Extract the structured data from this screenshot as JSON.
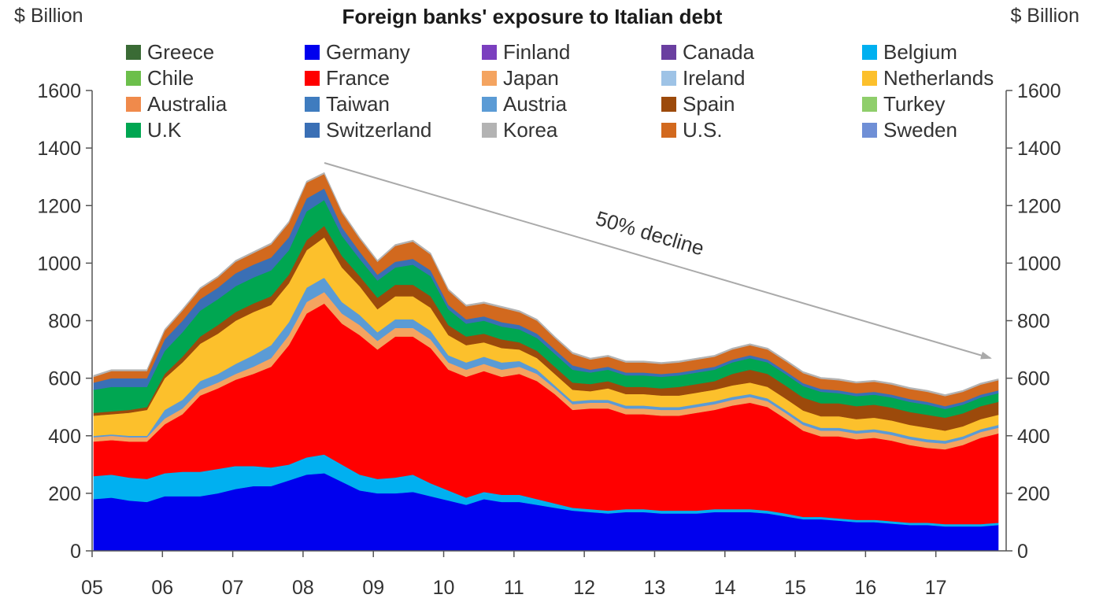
{
  "header": {
    "title": "Foreign banks' exposure to Italian debt",
    "unit_left": "$ Billion",
    "unit_right": "$ Billion"
  },
  "chart_data": {
    "type": "area",
    "stacked": true,
    "title": "Foreign banks' exposure to Italian debt",
    "ylabel_left": "$ Billion",
    "ylabel_right": "$ Billion",
    "ylim": [
      0,
      1600
    ],
    "yticks": [
      "0",
      "200",
      "400",
      "600",
      "800",
      "1000",
      "1200",
      "1400",
      "1600"
    ],
    "x_ticks": [
      "05",
      "06",
      "07",
      "08",
      "09",
      "10",
      "11",
      "12",
      "13",
      "14",
      "15",
      "16",
      "17"
    ],
    "x": [
      "05Q1",
      "05Q2",
      "05Q3",
      "05Q4",
      "06Q1",
      "06Q2",
      "06Q3",
      "06Q4",
      "07Q1",
      "07Q2",
      "07Q3",
      "07Q4",
      "08Q1",
      "08Q2",
      "08Q3",
      "08Q4",
      "09Q1",
      "09Q2",
      "09Q3",
      "09Q4",
      "10Q1",
      "10Q2",
      "10Q3",
      "10Q4",
      "11Q1",
      "11Q2",
      "11Q3",
      "11Q4",
      "12Q1",
      "12Q2",
      "12Q3",
      "12Q4",
      "13Q1",
      "13Q2",
      "13Q3",
      "13Q4",
      "14Q1",
      "14Q2",
      "14Q3",
      "14Q4",
      "15Q1",
      "15Q2",
      "15Q3",
      "15Q4",
      "16Q1",
      "16Q2",
      "16Q3",
      "16Q4",
      "17Q1",
      "17Q2",
      "17Q3",
      "17Q4"
    ],
    "legend_order": [
      "Greece",
      "Germany",
      "Finland",
      "Canada",
      "Belgium",
      "Chile",
      "France",
      "Japan",
      "Ireland",
      "Netherlands",
      "Australia",
      "Taiwan",
      "Austria",
      "Spain",
      "Turkey",
      "U.K",
      "Switzerland",
      "Korea",
      "U.S.",
      "Sweden"
    ],
    "legend_position": "top",
    "series": [
      {
        "name": "Germany",
        "color": "#0000ee",
        "values": [
          180,
          185,
          175,
          170,
          190,
          190,
          190,
          200,
          215,
          225,
          225,
          245,
          265,
          270,
          240,
          210,
          200,
          200,
          205,
          190,
          175,
          160,
          180,
          170,
          170,
          160,
          150,
          140,
          135,
          130,
          135,
          135,
          130,
          130,
          130,
          135,
          135,
          135,
          130,
          120,
          110,
          110,
          105,
          100,
          100,
          95,
          90,
          90,
          85,
          85,
          85,
          90
        ]
      },
      {
        "name": "Belgium",
        "color": "#00b0f0",
        "values": [
          80,
          80,
          80,
          80,
          80,
          85,
          85,
          85,
          80,
          70,
          65,
          55,
          60,
          65,
          60,
          55,
          50,
          55,
          60,
          45,
          35,
          25,
          25,
          25,
          25,
          20,
          15,
          10,
          10,
          10,
          10,
          10,
          10,
          10,
          10,
          10,
          10,
          10,
          10,
          10,
          8,
          8,
          8,
          8,
          8,
          8,
          8,
          8,
          8,
          8,
          8,
          8
        ]
      },
      {
        "name": "France",
        "color": "#ff0000",
        "values": [
          120,
          120,
          125,
          130,
          170,
          200,
          265,
          280,
          300,
          320,
          350,
          415,
          500,
          525,
          490,
          485,
          450,
          490,
          480,
          470,
          420,
          420,
          420,
          410,
          420,
          410,
          380,
          340,
          350,
          355,
          330,
          330,
          330,
          330,
          340,
          345,
          360,
          370,
          360,
          330,
          300,
          280,
          285,
          280,
          285,
          280,
          270,
          260,
          260,
          275,
          300,
          310
        ]
      },
      {
        "name": "Japan",
        "color": "#f4a460",
        "values": [
          15,
          15,
          15,
          15,
          20,
          20,
          20,
          20,
          20,
          25,
          30,
          35,
          40,
          40,
          35,
          35,
          30,
          30,
          30,
          30,
          25,
          25,
          25,
          25,
          25,
          25,
          20,
          20,
          20,
          20,
          20,
          20,
          20,
          20,
          20,
          20,
          20,
          20,
          20,
          20,
          20,
          20,
          20,
          20,
          20,
          20,
          20,
          20,
          20,
          20,
          20,
          20
        ]
      },
      {
        "name": "Austria",
        "color": "#5b9bd5",
        "values": [
          5,
          5,
          5,
          5,
          30,
          30,
          30,
          30,
          35,
          40,
          45,
          45,
          50,
          50,
          40,
          35,
          30,
          30,
          30,
          30,
          25,
          25,
          25,
          25,
          20,
          15,
          10,
          10,
          10,
          10,
          10,
          10,
          10,
          10,
          10,
          10,
          10,
          10,
          10,
          10,
          10,
          10,
          10,
          10,
          10,
          10,
          10,
          10,
          10,
          10,
          10,
          10
        ]
      },
      {
        "name": "Netherlands",
        "color": "#fcc02c",
        "values": [
          70,
          70,
          80,
          90,
          110,
          130,
          130,
          140,
          150,
          150,
          140,
          135,
          130,
          140,
          120,
          100,
          80,
          80,
          80,
          80,
          70,
          60,
          50,
          50,
          40,
          40,
          40,
          40,
          30,
          40,
          40,
          40,
          40,
          40,
          40,
          40,
          40,
          40,
          40,
          40,
          40,
          40,
          40,
          40,
          40,
          40,
          40,
          40,
          35,
          35,
          35,
          35
        ]
      },
      {
        "name": "Spain",
        "color": "#9c4a0b",
        "values": [
          10,
          10,
          10,
          10,
          15,
          20,
          25,
          30,
          30,
          30,
          30,
          30,
          35,
          40,
          40,
          35,
          40,
          40,
          40,
          40,
          35,
          30,
          30,
          30,
          25,
          25,
          25,
          25,
          25,
          25,
          25,
          25,
          25,
          30,
          30,
          30,
          40,
          45,
          45,
          45,
          45,
          45,
          45,
          45,
          45,
          45,
          45,
          45,
          45,
          45,
          45,
          45
        ]
      },
      {
        "name": "U.K",
        "color": "#00a651",
        "values": [
          80,
          85,
          80,
          70,
          80,
          85,
          90,
          90,
          90,
          90,
          90,
          85,
          100,
          90,
          70,
          60,
          60,
          60,
          70,
          70,
          55,
          45,
          45,
          45,
          45,
          45,
          45,
          45,
          40,
          40,
          40,
          40,
          40,
          40,
          40,
          40,
          40,
          40,
          40,
          40,
          40,
          40,
          35,
          35,
          35,
          35,
          35,
          35,
          30,
          30,
          30,
          30
        ]
      },
      {
        "name": "Switzerland",
        "color": "#3a6fb5",
        "values": [
          25,
          30,
          30,
          30,
          40,
          40,
          40,
          40,
          45,
          45,
          45,
          45,
          45,
          40,
          30,
          25,
          20,
          20,
          20,
          20,
          15,
          15,
          15,
          15,
          15,
          15,
          15,
          15,
          10,
          10,
          10,
          10,
          10,
          10,
          10,
          10,
          10,
          10,
          10,
          10,
          10,
          10,
          10,
          10,
          10,
          10,
          10,
          10,
          10,
          10,
          10,
          10
        ]
      },
      {
        "name": "U.S.",
        "color": "#d2691e",
        "values": [
          20,
          25,
          25,
          25,
          30,
          35,
          35,
          35,
          40,
          40,
          45,
          50,
          55,
          50,
          50,
          45,
          45,
          55,
          60,
          55,
          50,
          45,
          45,
          50,
          45,
          45,
          40,
          40,
          35,
          35,
          35,
          35,
          35,
          35,
          35,
          35,
          35,
          35,
          35,
          35,
          35,
          35,
          35,
          35,
          35,
          35,
          35,
          35,
          35,
          35,
          35,
          35
        ]
      },
      {
        "name": "Korea",
        "color": "#b3b3b3",
        "values": [
          5,
          5,
          5,
          5,
          5,
          5,
          5,
          5,
          5,
          5,
          5,
          5,
          5,
          5,
          5,
          5,
          5,
          5,
          5,
          5,
          5,
          5,
          5,
          5,
          5,
          5,
          5,
          5,
          5,
          5,
          5,
          5,
          5,
          5,
          5,
          5,
          5,
          5,
          5,
          5,
          5,
          5,
          5,
          5,
          5,
          5,
          5,
          5,
          5,
          5,
          5,
          5
        ]
      }
    ],
    "annotation": {
      "text": "50% decline"
    }
  }
}
